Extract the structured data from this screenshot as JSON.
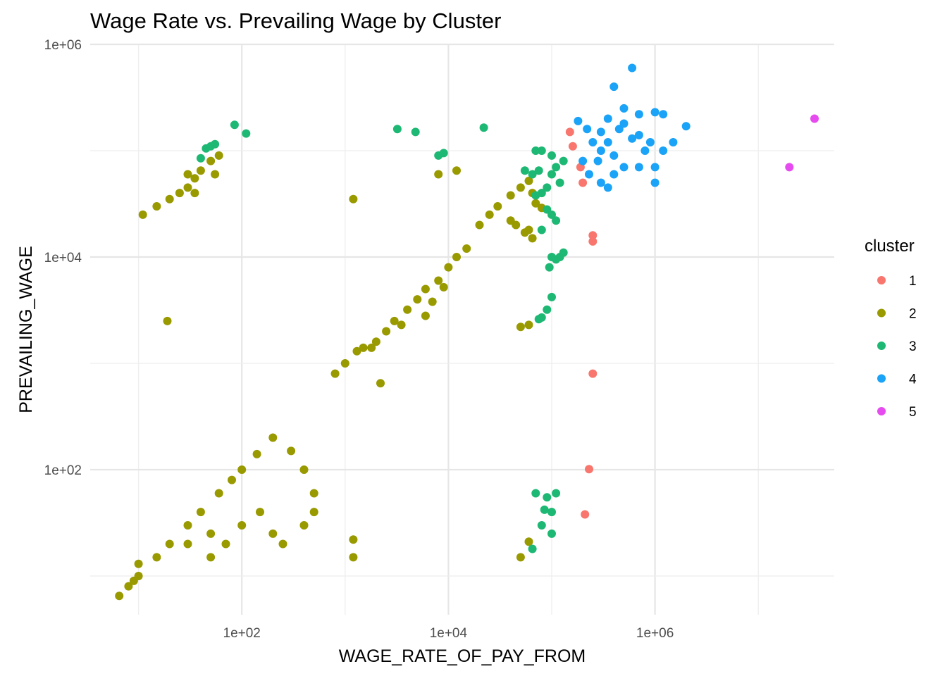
{
  "chart_data": {
    "type": "scatter",
    "title": "Wage Rate vs. Prevailing Wage by Cluster",
    "xlabel": "WAGE_RATE_OF_PAY_FROM",
    "ylabel": "PREVAILING_WAGE",
    "x_scale": "log10",
    "y_scale": "log10",
    "xlim": [
      4.5,
      60000000
    ],
    "ylim": [
      4.6,
      1000000
    ],
    "x_ticks": [
      {
        "value": 100,
        "label": "1e+02"
      },
      {
        "value": 10000,
        "label": "1e+04"
      },
      {
        "value": 1000000,
        "label": "1e+06"
      }
    ],
    "y_ticks": [
      {
        "value": 100,
        "label": "1e+02"
      },
      {
        "value": 10000,
        "label": "1e+04"
      },
      {
        "value": 1000000,
        "label": "1e+06"
      }
    ],
    "grid": true,
    "legend": {
      "title": "cluster",
      "position": "right"
    },
    "series": [
      {
        "name": "1",
        "color": "#F8766D",
        "points": [
          [
            250000,
            16000
          ],
          [
            250000,
            14000
          ],
          [
            250000,
            800
          ],
          [
            230000,
            101
          ],
          [
            210000,
            38
          ],
          [
            150000,
            150000
          ],
          [
            160000,
            110000
          ],
          [
            190000,
            70000
          ],
          [
            200000,
            50000
          ]
        ]
      },
      {
        "name": "2",
        "color": "#999900",
        "points": [
          [
            6.5,
            6.5
          ],
          [
            8,
            8
          ],
          [
            9,
            9
          ],
          [
            10,
            10
          ],
          [
            15,
            15
          ],
          [
            20,
            20
          ],
          [
            30,
            30
          ],
          [
            40,
            40
          ],
          [
            60,
            60
          ],
          [
            80,
            80
          ],
          [
            100,
            100
          ],
          [
            140,
            140
          ],
          [
            200,
            200
          ],
          [
            300,
            150
          ],
          [
            400,
            100
          ],
          [
            150,
            40
          ],
          [
            100,
            30
          ],
          [
            200,
            25
          ],
          [
            250,
            20
          ],
          [
            400,
            30
          ],
          [
            500,
            60
          ],
          [
            500,
            40
          ],
          [
            30,
            20
          ],
          [
            50,
            15
          ],
          [
            10,
            13
          ],
          [
            50,
            25
          ],
          [
            70,
            20
          ],
          [
            11,
            25000
          ],
          [
            15,
            30000
          ],
          [
            20,
            35000
          ],
          [
            25,
            40000
          ],
          [
            30,
            45000
          ],
          [
            35,
            55000
          ],
          [
            40,
            65000
          ],
          [
            50,
            80000
          ],
          [
            60,
            90000
          ],
          [
            35,
            40000
          ],
          [
            30,
            60000
          ],
          [
            55,
            60000
          ],
          [
            19,
            2500
          ],
          [
            1200,
            35000
          ],
          [
            1200,
            22
          ],
          [
            1200,
            15
          ],
          [
            800,
            800
          ],
          [
            1000,
            1000
          ],
          [
            1300,
            1300
          ],
          [
            1500,
            1400
          ],
          [
            1800,
            1400
          ],
          [
            2000,
            1600
          ],
          [
            2200,
            650
          ],
          [
            2500,
            2000
          ],
          [
            3000,
            2500
          ],
          [
            4000,
            3200
          ],
          [
            5000,
            4000
          ],
          [
            6000,
            5000
          ],
          [
            8000,
            6000
          ],
          [
            10000,
            8000
          ],
          [
            12000,
            10000
          ],
          [
            15000,
            12000
          ],
          [
            7000,
            3800
          ],
          [
            9000,
            5200
          ],
          [
            6000,
            2800
          ],
          [
            3500,
            2300
          ],
          [
            20000,
            20000
          ],
          [
            25000,
            25000
          ],
          [
            30000,
            30000
          ],
          [
            40000,
            38000
          ],
          [
            50000,
            45000
          ],
          [
            60000,
            52000
          ],
          [
            65000,
            40000
          ],
          [
            70000,
            32000
          ],
          [
            80000,
            29000
          ],
          [
            45000,
            20000
          ],
          [
            55000,
            17000
          ],
          [
            60000,
            18000
          ],
          [
            40000,
            22000
          ],
          [
            8000,
            60000
          ],
          [
            12000,
            65000
          ],
          [
            65000,
            15000
          ],
          [
            60000,
            2300
          ],
          [
            50000,
            2200
          ],
          [
            60000,
            21
          ],
          [
            50000,
            15
          ]
        ]
      },
      {
        "name": "3",
        "color": "#1DB873",
        "points": [
          [
            40,
            85000
          ],
          [
            45,
            105000
          ],
          [
            50,
            110000
          ],
          [
            55,
            115000
          ],
          [
            85,
            175000
          ],
          [
            110,
            145000
          ],
          [
            3200,
            160000
          ],
          [
            4800,
            150000
          ],
          [
            8000,
            90000
          ],
          [
            9000,
            95000
          ],
          [
            22000,
            165000
          ],
          [
            70000,
            100000
          ],
          [
            80000,
            100000
          ],
          [
            100000,
            90000
          ],
          [
            110000,
            70000
          ],
          [
            100000,
            60000
          ],
          [
            120000,
            50000
          ],
          [
            90000,
            45000
          ],
          [
            80000,
            40000
          ],
          [
            70000,
            38000
          ],
          [
            65000,
            60000
          ],
          [
            90000,
            28000
          ],
          [
            100000,
            25000
          ],
          [
            110000,
            22000
          ],
          [
            80000,
            18000
          ],
          [
            55000,
            65000
          ],
          [
            75000,
            65000
          ],
          [
            130000,
            80000
          ],
          [
            100000,
            10000
          ],
          [
            110000,
            9500
          ],
          [
            120000,
            10000
          ],
          [
            130000,
            11000
          ],
          [
            95000,
            8000
          ],
          [
            80000,
            2700
          ],
          [
            90000,
            3200
          ],
          [
            100000,
            4200
          ],
          [
            75000,
            2600
          ],
          [
            70000,
            60
          ],
          [
            90000,
            55
          ],
          [
            100000,
            40
          ],
          [
            110000,
            60
          ],
          [
            100000,
            25
          ],
          [
            80000,
            30
          ],
          [
            85000,
            42
          ],
          [
            65000,
            18
          ]
        ]
      },
      {
        "name": "4",
        "color": "#1BA3F7",
        "points": [
          [
            600000,
            600000
          ],
          [
            400000,
            400000
          ],
          [
            500000,
            250000
          ],
          [
            700000,
            220000
          ],
          [
            1000000,
            230000
          ],
          [
            1200000,
            220000
          ],
          [
            2000000,
            170000
          ],
          [
            1500000,
            120000
          ],
          [
            1200000,
            100000
          ],
          [
            900000,
            120000
          ],
          [
            800000,
            100000
          ],
          [
            1000000,
            70000
          ],
          [
            700000,
            70000
          ],
          [
            500000,
            70000
          ],
          [
            400000,
            60000
          ],
          [
            300000,
            50000
          ],
          [
            1000000,
            50000
          ],
          [
            200000,
            80000
          ],
          [
            250000,
            120000
          ],
          [
            300000,
            150000
          ],
          [
            350000,
            200000
          ],
          [
            220000,
            160000
          ],
          [
            180000,
            190000
          ],
          [
            350000,
            120000
          ],
          [
            400000,
            90000
          ],
          [
            300000,
            100000
          ],
          [
            450000,
            160000
          ],
          [
            500000,
            180000
          ],
          [
            600000,
            130000
          ],
          [
            700000,
            140000
          ],
          [
            280000,
            80000
          ],
          [
            230000,
            60000
          ],
          [
            350000,
            45000
          ]
        ]
      },
      {
        "name": "5",
        "color": "#E54BEE",
        "points": [
          [
            35000000,
            200000
          ],
          [
            20000000,
            70000
          ]
        ]
      }
    ]
  }
}
